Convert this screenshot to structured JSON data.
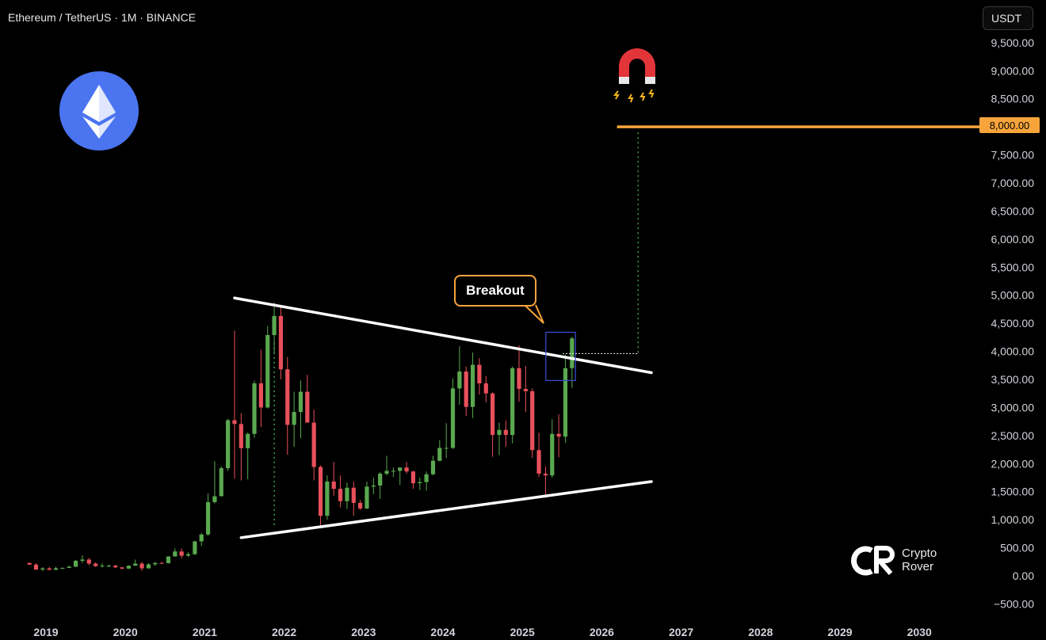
{
  "header": {
    "title": "Ethereum / TetherUS · 1M · BINANCE",
    "unit": "USDT"
  },
  "annotations": {
    "breakout": "Breakout",
    "target_price": "8,000.00",
    "target_value": 8000,
    "target_color": "#f7a43b"
  },
  "brand": {
    "line1": "Crypto",
    "line2": "Rover"
  },
  "colors": {
    "up": "#5aa84f",
    "down": "#e8505b",
    "trendline": "#ffffff",
    "grid": "none",
    "background": "#000000"
  },
  "icons": {
    "logo": "ethereum-icon",
    "magnet": "magnet-icon",
    "brand": "crypto-rover-logo-icon"
  },
  "chart_data": {
    "type": "candlestick",
    "title": "Ethereum / TetherUS · 1M · BINANCE",
    "x_ticks": [
      "2019",
      "2020",
      "2021",
      "2022",
      "2023",
      "2024",
      "2025",
      "2026",
      "2027",
      "2028",
      "2029",
      "2030"
    ],
    "y_ticks": [
      9500,
      9000,
      8500,
      8000,
      7500,
      7000,
      6500,
      6000,
      5500,
      5000,
      4500,
      4000,
      3500,
      3000,
      2500,
      2000,
      1500,
      1000,
      500,
      0,
      -500
    ],
    "y_tick_labels": [
      "9,500.00",
      "9,000.00",
      "8,500.00",
      "8,000.00",
      "7,500.00",
      "7,000.00",
      "6,500.00",
      "6,000.00",
      "5,500.00",
      "5,000.00",
      "4,500.00",
      "4,000.00",
      "3,500.00",
      "3,000.00",
      "2,500.00",
      "2,000.00",
      "1,500.00",
      "1,000.00",
      "500.00",
      "0.00",
      "−500.00"
    ],
    "ylim": [
      -500,
      9700
    ],
    "grid": false,
    "candles": [
      {
        "t": "2018-10",
        "o": 230,
        "h": 235,
        "l": 195,
        "c": 200
      },
      {
        "t": "2018-11",
        "o": 200,
        "h": 225,
        "l": 105,
        "c": 113
      },
      {
        "t": "2018-12",
        "o": 113,
        "h": 155,
        "l": 82,
        "c": 133
      },
      {
        "t": "2019-01",
        "o": 133,
        "h": 160,
        "l": 100,
        "c": 107
      },
      {
        "t": "2019-02",
        "o": 107,
        "h": 165,
        "l": 102,
        "c": 136
      },
      {
        "t": "2019-03",
        "o": 136,
        "h": 150,
        "l": 125,
        "c": 141
      },
      {
        "t": "2019-04",
        "o": 141,
        "h": 185,
        "l": 140,
        "c": 162
      },
      {
        "t": "2019-05",
        "o": 162,
        "h": 285,
        "l": 160,
        "c": 268
      },
      {
        "t": "2019-06",
        "o": 268,
        "h": 365,
        "l": 230,
        "c": 290
      },
      {
        "t": "2019-07",
        "o": 290,
        "h": 320,
        "l": 190,
        "c": 218
      },
      {
        "t": "2019-08",
        "o": 218,
        "h": 240,
        "l": 160,
        "c": 172
      },
      {
        "t": "2019-09",
        "o": 172,
        "h": 225,
        "l": 150,
        "c": 180
      },
      {
        "t": "2019-10",
        "o": 180,
        "h": 200,
        "l": 155,
        "c": 182
      },
      {
        "t": "2019-11",
        "o": 182,
        "h": 195,
        "l": 140,
        "c": 151
      },
      {
        "t": "2019-12",
        "o": 151,
        "h": 155,
        "l": 118,
        "c": 129
      },
      {
        "t": "2020-01",
        "o": 129,
        "h": 185,
        "l": 125,
        "c": 180
      },
      {
        "t": "2020-02",
        "o": 180,
        "h": 290,
        "l": 180,
        "c": 218
      },
      {
        "t": "2020-03",
        "o": 218,
        "h": 250,
        "l": 90,
        "c": 133
      },
      {
        "t": "2020-04",
        "o": 133,
        "h": 225,
        "l": 130,
        "c": 206
      },
      {
        "t": "2020-05",
        "o": 206,
        "h": 245,
        "l": 175,
        "c": 230
      },
      {
        "t": "2020-06",
        "o": 230,
        "h": 250,
        "l": 215,
        "c": 225
      },
      {
        "t": "2020-07",
        "o": 225,
        "h": 350,
        "l": 220,
        "c": 345
      },
      {
        "t": "2020-08",
        "o": 345,
        "h": 490,
        "l": 350,
        "c": 434
      },
      {
        "t": "2020-09",
        "o": 434,
        "h": 490,
        "l": 310,
        "c": 359
      },
      {
        "t": "2020-10",
        "o": 359,
        "h": 420,
        "l": 335,
        "c": 386
      },
      {
        "t": "2020-11",
        "o": 386,
        "h": 625,
        "l": 370,
        "c": 614
      },
      {
        "t": "2020-12",
        "o": 614,
        "h": 760,
        "l": 530,
        "c": 737
      },
      {
        "t": "2021-01",
        "o": 737,
        "h": 1470,
        "l": 715,
        "c": 1314
      },
      {
        "t": "2021-02",
        "o": 1314,
        "h": 2040,
        "l": 1290,
        "c": 1418
      },
      {
        "t": "2021-03",
        "o": 1418,
        "h": 1950,
        "l": 1420,
        "c": 1918
      },
      {
        "t": "2021-04",
        "o": 1918,
        "h": 2800,
        "l": 1870,
        "c": 2773
      },
      {
        "t": "2021-05",
        "o": 2773,
        "h": 4370,
        "l": 1730,
        "c": 2706
      },
      {
        "t": "2021-06",
        "o": 2706,
        "h": 2900,
        "l": 1700,
        "c": 2275
      },
      {
        "t": "2021-07",
        "o": 2275,
        "h": 2550,
        "l": 1720,
        "c": 2530
      },
      {
        "t": "2021-08",
        "o": 2530,
        "h": 3480,
        "l": 2460,
        "c": 3430
      },
      {
        "t": "2021-09",
        "o": 3430,
        "h": 4030,
        "l": 2650,
        "c": 3000
      },
      {
        "t": "2021-10",
        "o": 3000,
        "h": 4450,
        "l": 2980,
        "c": 4290
      },
      {
        "t": "2021-11",
        "o": 4290,
        "h": 4870,
        "l": 3950,
        "c": 4630
      },
      {
        "t": "2021-12",
        "o": 4630,
        "h": 4780,
        "l": 3500,
        "c": 3680
      },
      {
        "t": "2022-01",
        "o": 3680,
        "h": 3900,
        "l": 2160,
        "c": 2690
      },
      {
        "t": "2022-02",
        "o": 2690,
        "h": 3280,
        "l": 2300,
        "c": 2920
      },
      {
        "t": "2022-03",
        "o": 2920,
        "h": 3480,
        "l": 2450,
        "c": 3280
      },
      {
        "t": "2022-04",
        "o": 3280,
        "h": 3580,
        "l": 2760,
        "c": 2730
      },
      {
        "t": "2022-05",
        "o": 2730,
        "h": 2960,
        "l": 1700,
        "c": 1940
      },
      {
        "t": "2022-06",
        "o": 1940,
        "h": 1970,
        "l": 880,
        "c": 1070
      },
      {
        "t": "2022-07",
        "o": 1070,
        "h": 1790,
        "l": 1000,
        "c": 1680
      },
      {
        "t": "2022-08",
        "o": 1680,
        "h": 2030,
        "l": 1420,
        "c": 1550
      },
      {
        "t": "2022-09",
        "o": 1550,
        "h": 1790,
        "l": 1220,
        "c": 1330
      },
      {
        "t": "2022-10",
        "o": 1330,
        "h": 1660,
        "l": 1190,
        "c": 1570
      },
      {
        "t": "2022-11",
        "o": 1570,
        "h": 1680,
        "l": 1070,
        "c": 1300
      },
      {
        "t": "2022-12",
        "o": 1300,
        "h": 1350,
        "l": 1170,
        "c": 1200
      },
      {
        "t": "2023-01",
        "o": 1200,
        "h": 1680,
        "l": 1190,
        "c": 1590
      },
      {
        "t": "2023-02",
        "o": 1590,
        "h": 1750,
        "l": 1460,
        "c": 1610
      },
      {
        "t": "2023-03",
        "o": 1610,
        "h": 1850,
        "l": 1370,
        "c": 1820
      },
      {
        "t": "2023-04",
        "o": 1820,
        "h": 2140,
        "l": 1790,
        "c": 1870
      },
      {
        "t": "2023-05",
        "o": 1870,
        "h": 1930,
        "l": 1760,
        "c": 1870
      },
      {
        "t": "2023-06",
        "o": 1870,
        "h": 1930,
        "l": 1620,
        "c": 1930
      },
      {
        "t": "2023-07",
        "o": 1930,
        "h": 2030,
        "l": 1820,
        "c": 1860
      },
      {
        "t": "2023-08",
        "o": 1860,
        "h": 1870,
        "l": 1550,
        "c": 1650
      },
      {
        "t": "2023-09",
        "o": 1650,
        "h": 1750,
        "l": 1530,
        "c": 1670
      },
      {
        "t": "2023-10",
        "o": 1670,
        "h": 1860,
        "l": 1520,
        "c": 1810
      },
      {
        "t": "2023-11",
        "o": 1810,
        "h": 2140,
        "l": 1790,
        "c": 2050
      },
      {
        "t": "2023-12",
        "o": 2050,
        "h": 2420,
        "l": 2040,
        "c": 2280
      },
      {
        "t": "2024-01",
        "o": 2280,
        "h": 2720,
        "l": 2100,
        "c": 2280
      },
      {
        "t": "2024-02",
        "o": 2280,
        "h": 3520,
        "l": 2260,
        "c": 3340
      },
      {
        "t": "2024-03",
        "o": 3340,
        "h": 4090,
        "l": 3050,
        "c": 3640
      },
      {
        "t": "2024-04",
        "o": 3640,
        "h": 3730,
        "l": 2850,
        "c": 3010
      },
      {
        "t": "2024-05",
        "o": 3010,
        "h": 3980,
        "l": 2810,
        "c": 3760
      },
      {
        "t": "2024-06",
        "o": 3760,
        "h": 3880,
        "l": 3230,
        "c": 3430
      },
      {
        "t": "2024-07",
        "o": 3430,
        "h": 3560,
        "l": 3090,
        "c": 3250
      },
      {
        "t": "2024-08",
        "o": 3250,
        "h": 3270,
        "l": 2120,
        "c": 2510
      },
      {
        "t": "2024-09",
        "o": 2510,
        "h": 2730,
        "l": 2150,
        "c": 2600
      },
      {
        "t": "2024-10",
        "o": 2600,
        "h": 2770,
        "l": 2300,
        "c": 2510
      },
      {
        "t": "2024-11",
        "o": 2510,
        "h": 3730,
        "l": 2360,
        "c": 3700
      },
      {
        "t": "2024-12",
        "o": 3700,
        "h": 4110,
        "l": 3100,
        "c": 3330
      },
      {
        "t": "2025-01",
        "o": 3330,
        "h": 3740,
        "l": 2920,
        "c": 3290
      },
      {
        "t": "2025-02",
        "o": 3290,
        "h": 3340,
        "l": 2100,
        "c": 2240
      },
      {
        "t": "2025-03",
        "o": 2240,
        "h": 2550,
        "l": 1760,
        "c": 1820
      },
      {
        "t": "2025-04",
        "o": 1820,
        "h": 1950,
        "l": 1390,
        "c": 1790
      },
      {
        "t": "2025-05",
        "o": 1790,
        "h": 2790,
        "l": 1750,
        "c": 2530
      },
      {
        "t": "2025-06",
        "o": 2530,
        "h": 2880,
        "l": 2110,
        "c": 2480
      },
      {
        "t": "2025-07",
        "o": 2480,
        "h": 3940,
        "l": 2370,
        "c": 3700
      },
      {
        "t": "2025-08",
        "o": 3700,
        "h": 4260,
        "l": 3350,
        "c": 4230
      }
    ],
    "trendlines": [
      {
        "name": "upper",
        "from": {
          "t": "2021-05",
          "v": 4950
        },
        "to": {
          "t": "2026-08",
          "v": 3620
        }
      },
      {
        "name": "lower",
        "from": {
          "t": "2021-06",
          "v": 680
        },
        "to": {
          "t": "2026-08",
          "v": 1680
        }
      }
    ],
    "breakout_box": {
      "from_t": "2025-05",
      "to_t": "2025-09",
      "top": 4340,
      "bottom": 3480
    },
    "target_line": {
      "from_t": "2026-04",
      "to": "right",
      "value": 8000
    },
    "guides": [
      {
        "style": "dotted",
        "color": "#3fa34d",
        "t": "2021-11",
        "from": 860,
        "to": 4150
      },
      {
        "style": "dotted",
        "color": "#3fa34d",
        "t": "2026-06",
        "from": 3950,
        "to": 7900
      },
      {
        "style": "dotted",
        "color": "#ffffff",
        "from_t": "2025-09",
        "to_t": "2026-06",
        "value": 3960
      }
    ]
  }
}
